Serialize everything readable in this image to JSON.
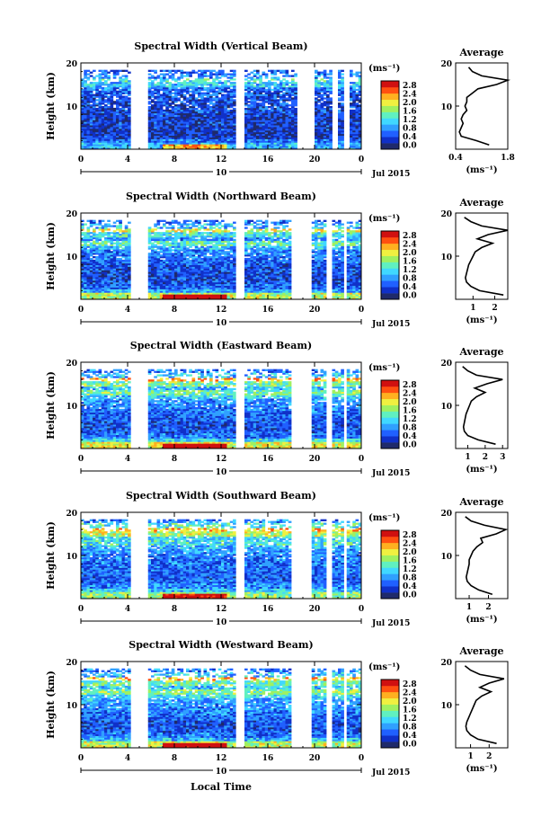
{
  "figure": {
    "xlabel": "Local Time",
    "colorbar_unit": "(ms⁻¹)",
    "colorbar_ticks": [
      "0.0",
      "0.4",
      "0.8",
      "1.2",
      "1.6",
      "2.0",
      "2.4",
      "2.8"
    ],
    "height_label": "Height (km)",
    "height_ticks": [
      "10",
      "20"
    ],
    "time_ticks": [
      "0",
      "4",
      "8",
      "12",
      "16",
      "20",
      "0"
    ],
    "date_day": "10",
    "date_month_year": "Jul 2015",
    "profile_title": "Average",
    "colormap": [
      "#1f2a6b",
      "#1030c8",
      "#2060ff",
      "#30a0ff",
      "#40d8ff",
      "#60f0c0",
      "#a0f060",
      "#f0f040",
      "#ffb020",
      "#ff5010",
      "#d01010"
    ]
  },
  "chart_data": [
    {
      "type": "heatmap",
      "title": "Spectral Width (Vertical Beam)",
      "xlabel": "Local Time",
      "ylabel": "Height (km)",
      "xlim": [
        0,
        24
      ],
      "ylim": [
        0,
        20
      ],
      "data_gaps_hours": [
        [
          4.3,
          5.8
        ],
        [
          13.2,
          14.0
        ],
        [
          18.5,
          20.0
        ],
        [
          21.5,
          22.0
        ],
        [
          22.5,
          23.0
        ]
      ],
      "profile": {
        "title": "Average",
        "xlabel": "(ms⁻¹)",
        "xticks": [
          "0.4",
          "1.8"
        ],
        "xlim": [
          0.4,
          1.8
        ],
        "height_km": [
          1,
          2,
          3,
          4,
          5,
          6,
          7,
          8,
          9,
          10,
          11,
          12,
          13,
          14,
          15,
          16,
          17,
          18,
          19
        ],
        "width": [
          1.3,
          0.95,
          0.55,
          0.5,
          0.55,
          0.6,
          0.55,
          0.6,
          0.7,
          0.65,
          0.7,
          0.7,
          0.85,
          1.0,
          1.5,
          1.8,
          1.1,
          0.85,
          0.75
        ]
      }
    },
    {
      "type": "heatmap",
      "title": "Spectral Width (Northward Beam)",
      "xlabel": "Local Time",
      "ylabel": "Height (km)",
      "xlim": [
        0,
        24
      ],
      "ylim": [
        0,
        20
      ],
      "data_gaps_hours": [
        [
          4.3,
          5.8
        ],
        [
          13.2,
          14.0
        ],
        [
          18.0,
          19.8
        ],
        [
          21.0,
          21.6
        ],
        [
          22.4,
          22.8
        ]
      ],
      "profile": {
        "title": "Average",
        "xlabel": "(ms⁻¹)",
        "xticks": [
          "1",
          "2"
        ],
        "xlim": [
          0.2,
          2.6
        ],
        "height_km": [
          1,
          2,
          3,
          4,
          5,
          6,
          7,
          8,
          9,
          10,
          11,
          12,
          13,
          14,
          15,
          16,
          17,
          18,
          19
        ],
        "width": [
          2.4,
          1.3,
          0.9,
          0.7,
          0.65,
          0.7,
          0.75,
          0.8,
          0.9,
          1.0,
          1.1,
          1.4,
          1.9,
          1.2,
          1.7,
          2.6,
          1.4,
          0.9,
          0.6
        ]
      }
    },
    {
      "type": "heatmap",
      "title": "Spectral Width (Eastward Beam)",
      "xlabel": "Local Time",
      "ylabel": "Height (km)",
      "xlim": [
        0,
        24
      ],
      "ylim": [
        0,
        20
      ],
      "data_gaps_hours": [
        [
          4.3,
          5.8
        ],
        [
          13.2,
          14.0
        ],
        [
          18.0,
          19.8
        ],
        [
          21.0,
          21.6
        ],
        [
          22.4,
          22.8
        ]
      ],
      "profile": {
        "title": "Average",
        "xlabel": "(ms⁻¹)",
        "xticks": [
          "1",
          "2",
          "3"
        ],
        "xlim": [
          0.3,
          3.3
        ],
        "height_km": [
          1,
          2,
          3,
          4,
          5,
          6,
          7,
          8,
          9,
          10,
          11,
          12,
          13,
          14,
          15,
          16,
          17,
          18,
          19
        ],
        "width": [
          2.6,
          1.6,
          1.0,
          0.8,
          0.75,
          0.8,
          0.85,
          0.9,
          1.0,
          1.1,
          1.2,
          1.5,
          2.0,
          1.4,
          2.1,
          3.0,
          1.5,
          1.0,
          0.7
        ]
      }
    },
    {
      "type": "heatmap",
      "title": "Spectral Width (Southward Beam)",
      "xlabel": "Local Time",
      "ylabel": "Height (km)",
      "xlim": [
        0,
        24
      ],
      "ylim": [
        0,
        20
      ],
      "data_gaps_hours": [
        [
          4.3,
          5.8
        ],
        [
          13.2,
          14.0
        ],
        [
          18.0,
          19.8
        ],
        [
          21.0,
          21.6
        ],
        [
          22.4,
          22.8
        ]
      ],
      "profile": {
        "title": "Average",
        "xlabel": "(ms⁻¹)",
        "xticks": [
          "1",
          "2"
        ],
        "xlim": [
          0.3,
          3.0
        ],
        "height_km": [
          1,
          2,
          3,
          4,
          5,
          6,
          7,
          8,
          9,
          10,
          11,
          12,
          13,
          14,
          15,
          16,
          17,
          18,
          19
        ],
        "width": [
          2.2,
          1.5,
          1.1,
          0.9,
          0.85,
          0.9,
          0.95,
          1.0,
          1.0,
          1.1,
          1.2,
          1.4,
          1.7,
          1.6,
          2.4,
          2.9,
          1.8,
          1.1,
          0.8
        ]
      }
    },
    {
      "type": "heatmap",
      "title": "Spectral Width (Westward Beam)",
      "xlabel": "Local Time",
      "ylabel": "Height (km)",
      "xlim": [
        0,
        24
      ],
      "ylim": [
        0,
        20
      ],
      "data_gaps_hours": [
        [
          4.3,
          5.8
        ],
        [
          13.2,
          14.0
        ],
        [
          18.0,
          19.8
        ],
        [
          21.0,
          21.6
        ],
        [
          22.4,
          22.8
        ]
      ],
      "profile": {
        "title": "Average",
        "xlabel": "(ms⁻¹)",
        "xticks": [
          "1",
          "2"
        ],
        "xlim": [
          0.2,
          3.0
        ],
        "height_km": [
          1,
          2,
          3,
          4,
          5,
          6,
          7,
          8,
          9,
          10,
          11,
          12,
          13,
          14,
          15,
          16,
          17,
          18,
          19
        ],
        "width": [
          2.4,
          1.4,
          1.0,
          0.8,
          0.75,
          0.8,
          0.9,
          1.0,
          1.1,
          1.2,
          1.3,
          1.6,
          2.1,
          1.5,
          2.0,
          2.8,
          1.5,
          1.0,
          0.7
        ]
      }
    }
  ]
}
